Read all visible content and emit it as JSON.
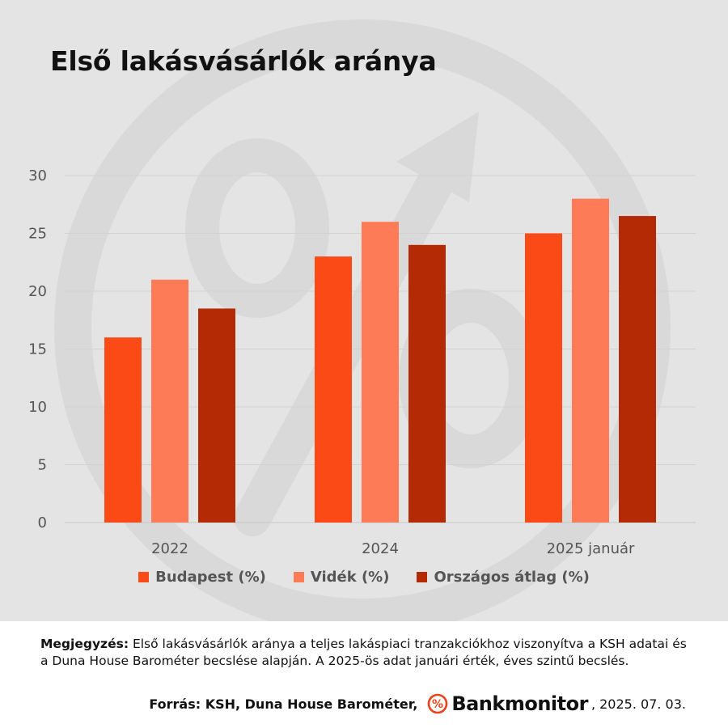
{
  "title": "Első lakásvásárlók aránya",
  "colors": {
    "budapest": "#fc4a16",
    "videk": "#fd7c57",
    "orszagos": "#b42a05",
    "panel_background": "#e4e4e4",
    "gridline": "#d2d2d2",
    "brand_accent": "#e8431a"
  },
  "chart_data": {
    "type": "bar",
    "categories": [
      "2022",
      "2024",
      "2025 január"
    ],
    "series": [
      {
        "name": "Budapest (%)",
        "values": [
          16,
          23,
          25
        ],
        "color": "#fc4a16"
      },
      {
        "name": "Vidék (%)",
        "values": [
          21,
          26,
          28
        ],
        "color": "#fd7c57"
      },
      {
        "name": "Országos átlag (%)",
        "values": [
          18.5,
          24,
          26.5
        ],
        "color": "#b42a05"
      }
    ],
    "title": "Első lakásvásárlók aránya",
    "xlabel": "",
    "ylabel": "",
    "ylim": [
      0,
      30
    ],
    "yticks": [
      0,
      5,
      10,
      15,
      20,
      25,
      30
    ],
    "grid": true,
    "legend_position": "bottom"
  },
  "footer": {
    "note_label": "Megjegyzés:",
    "note_text": " Első lakásvásárlók aránya a teljes lakáspiaci tranzakciókhoz viszonyítva a KSH adatai és a Duna House Barométer becslése alapján. A 2025-ös adat januári érték, éves szintű becslés.",
    "source_label": "Forrás: KSH, Duna House Barométer,",
    "brand_logo_symbol": "%",
    "brand_name": "Bankmonitor",
    "date": ", 2025. 07. 03."
  },
  "icons": {
    "watermark": "percent-arrow-watermark-icon",
    "brand": "percent-circle-logo-icon"
  }
}
